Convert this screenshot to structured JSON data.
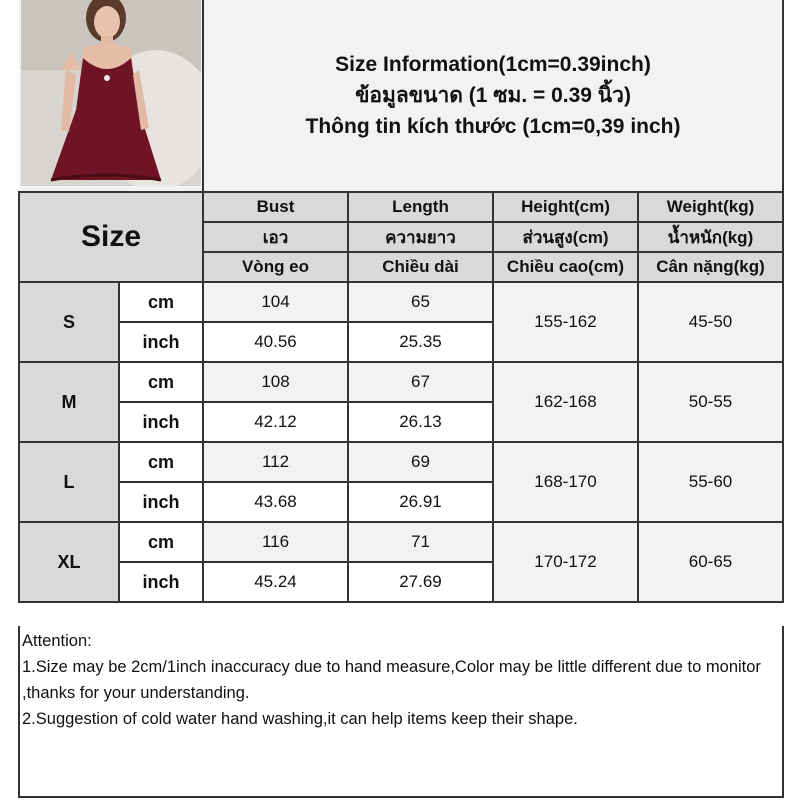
{
  "header": {
    "title_en": "Size Information(1cm=0.39inch)",
    "title_th": "ข้อมูลขนาด (1 ซม. = 0.39 นิ้ว)",
    "title_vi": "Thông tin kích thước (1cm=0,39 inch)"
  },
  "photo": {
    "description_icon": "dress-photo",
    "dress_color": "#6e1424"
  },
  "table": {
    "size_label": "Size",
    "columns": [
      {
        "en": "Bust",
        "th": "เอว",
        "vi": "Vòng eo"
      },
      {
        "en": "Length",
        "th": "ความยาว",
        "vi": "Chiều dài"
      },
      {
        "en": "Height(cm)",
        "th": "ส่วนสูง(cm)",
        "vi": "Chiều cao(cm)"
      },
      {
        "en": "Weight(kg)",
        "th": "น้ำหนัก(kg)",
        "vi": "Cân nặng(kg)"
      }
    ],
    "unit_cm": "cm",
    "unit_inch": "inch",
    "rows": [
      {
        "size": "S",
        "bust_cm": "104",
        "length_cm": "65",
        "bust_inch": "40.56",
        "length_inch": "25.35",
        "height": "155-162",
        "weight": "45-50"
      },
      {
        "size": "M",
        "bust_cm": "108",
        "length_cm": "67",
        "bust_inch": "42.12",
        "length_inch": "26.13",
        "height": "162-168",
        "weight": "50-55"
      },
      {
        "size": "L",
        "bust_cm": "112",
        "length_cm": "69",
        "bust_inch": "43.68",
        "length_inch": "26.91",
        "height": "168-170",
        "weight": "55-60"
      },
      {
        "size": "XL",
        "bust_cm": "116",
        "length_cm": "71",
        "bust_inch": "45.24",
        "length_inch": "27.69",
        "height": "170-172",
        "weight": "60-65"
      }
    ]
  },
  "attention": {
    "title": "Attention:",
    "line1": "1.Size may be 2cm/1inch inaccuracy due to hand measure,Color may be little different due to monitor ,thanks for your understanding.",
    "line2": "2.Suggestion of cold water hand washing,it can help items keep their shape."
  }
}
